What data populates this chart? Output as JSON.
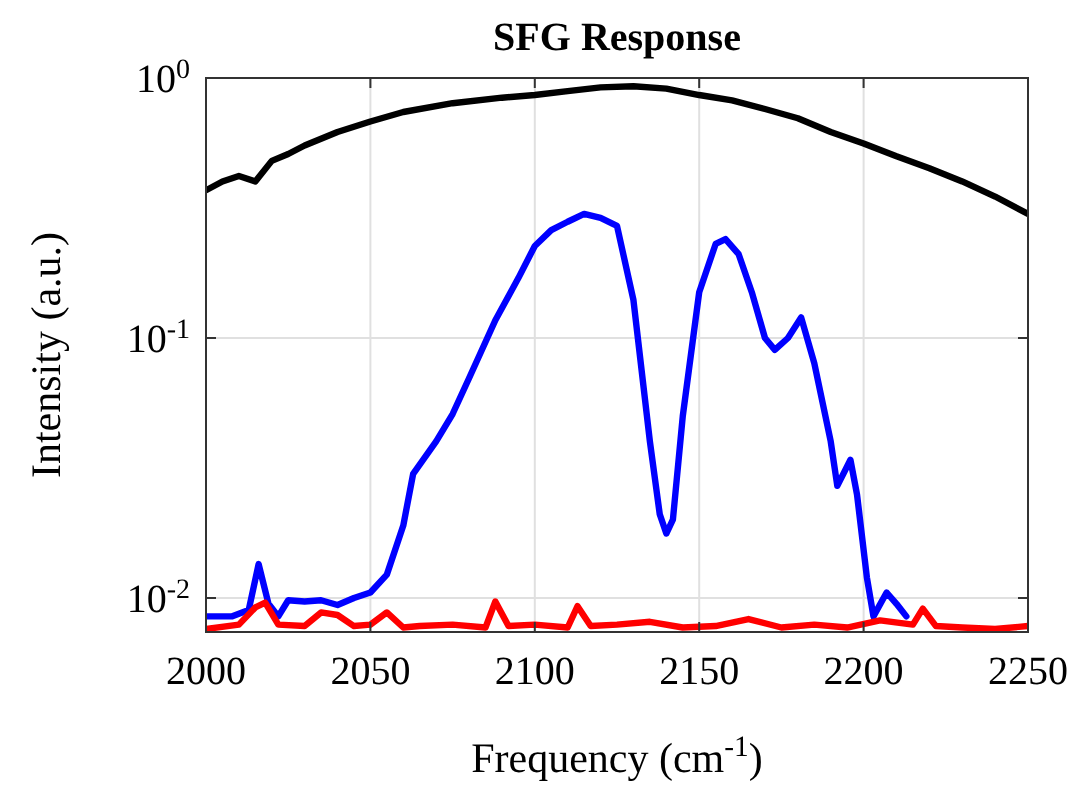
{
  "chart_data": {
    "type": "line",
    "title": "SFG Response",
    "xlabel": "Frequency (cm$^{-1}$)",
    "ylabel": "Intensity (a.u.)",
    "log": "y",
    "grid": true,
    "line_style": "solid",
    "marker": "none",
    "xlim": [
      2000,
      2250
    ],
    "xticks": [
      2000,
      2050,
      2100,
      2150,
      2200,
      2250
    ],
    "ylim": [
      0.0074,
      1
    ],
    "yticks": [
      {
        "value": 0.01,
        "label": "10$^{-2}$"
      },
      {
        "value": 0.1,
        "label": "10$^{-1}$"
      },
      {
        "value": 1,
        "label": "10$^{0}$"
      }
    ],
    "series": [
      {
        "color": "#000000",
        "x": [
          2000,
          2005,
          2010,
          2015,
          2020,
          2025,
          2030,
          2040,
          2050,
          2060,
          2075,
          2090,
          2100,
          2110,
          2120,
          2130,
          2140,
          2150,
          2160,
          2170,
          2180,
          2190,
          2200,
          2210,
          2220,
          2230,
          2240,
          2250
        ],
        "values": [
          0.37,
          0.4,
          0.42,
          0.4,
          0.48,
          0.51,
          0.55,
          0.62,
          0.68,
          0.74,
          0.8,
          0.84,
          0.86,
          0.89,
          0.92,
          0.93,
          0.91,
          0.86,
          0.82,
          0.76,
          0.7,
          0.62,
          0.56,
          0.5,
          0.45,
          0.4,
          0.35,
          0.3
        ]
      },
      {
        "color": "#0000ff",
        "x": [
          2000,
          2008,
          2013,
          2016,
          2019,
          2022,
          2025,
          2030,
          2035,
          2040,
          2045,
          2050,
          2055,
          2060,
          2063,
          2070,
          2075,
          2080,
          2088,
          2095,
          2100,
          2105,
          2110,
          2115,
          2120,
          2125,
          2130,
          2135,
          2138,
          2140,
          2142,
          2145,
          2150,
          2155,
          2158,
          2162,
          2166,
          2170,
          2173,
          2177,
          2181,
          2185,
          2190,
          2192,
          2196,
          2198,
          2201,
          2203,
          2207,
          2210,
          2213
        ],
        "values": [
          0.0085,
          0.0085,
          0.009,
          0.0135,
          0.0095,
          0.0085,
          0.0098,
          0.0097,
          0.0098,
          0.0094,
          0.01,
          0.0105,
          0.0123,
          0.019,
          0.03,
          0.04,
          0.051,
          0.07,
          0.117,
          0.17,
          0.226,
          0.26,
          0.28,
          0.3,
          0.29,
          0.27,
          0.14,
          0.04,
          0.021,
          0.0177,
          0.02,
          0.05,
          0.15,
          0.23,
          0.24,
          0.21,
          0.15,
          0.1,
          0.09,
          0.1,
          0.12,
          0.08,
          0.04,
          0.027,
          0.034,
          0.025,
          0.012,
          0.0085,
          0.0105,
          0.0095,
          0.0085
        ]
      },
      {
        "color": "#ff0000",
        "x": [
          2000,
          2010,
          2015,
          2018,
          2022,
          2030,
          2035,
          2040,
          2045,
          2050,
          2055,
          2060,
          2065,
          2075,
          2085,
          2088,
          2092,
          2100,
          2110,
          2113,
          2117,
          2125,
          2135,
          2145,
          2155,
          2165,
          2175,
          2185,
          2195,
          2205,
          2215,
          2218,
          2222,
          2230,
          2240,
          2250
        ],
        "values": [
          0.0076,
          0.0079,
          0.0092,
          0.0096,
          0.0079,
          0.0078,
          0.0088,
          0.0086,
          0.0078,
          0.0079,
          0.0088,
          0.0077,
          0.0078,
          0.0079,
          0.0077,
          0.0097,
          0.0078,
          0.0079,
          0.0077,
          0.0093,
          0.0078,
          0.0079,
          0.0081,
          0.0077,
          0.0078,
          0.0083,
          0.0077,
          0.0079,
          0.0077,
          0.0082,
          0.0079,
          0.0091,
          0.0078,
          0.0077,
          0.0076,
          0.0078
        ]
      }
    ]
  }
}
